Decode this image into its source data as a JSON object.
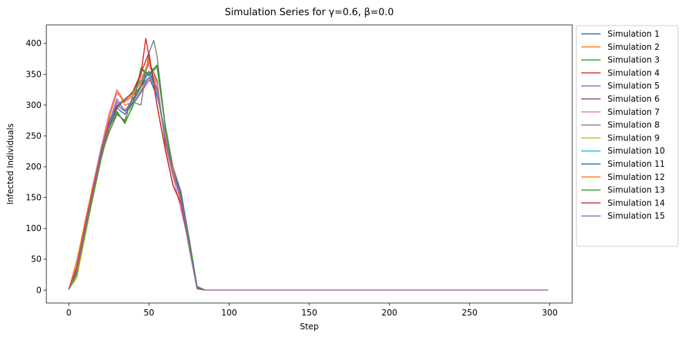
{
  "chart_data": {
    "type": "line",
    "title": "Simulation Series for γ=0.6, β=0.0",
    "xlabel": "Step",
    "ylabel": "Infected Individuals",
    "xlim": [
      -14,
      314
    ],
    "ylim": [
      -21,
      430
    ],
    "xticks": [
      0,
      50,
      100,
      150,
      200,
      250,
      300
    ],
    "yticks": [
      0,
      50,
      100,
      150,
      200,
      250,
      300,
      350,
      400
    ],
    "grid": false,
    "legend_position": "outside-right",
    "series": [
      {
        "name": "Simulation 1",
        "color": "#1f77b4",
        "x": [
          0,
          5,
          10,
          15,
          20,
          25,
          30,
          35,
          40,
          45,
          50,
          55,
          60,
          65,
          70,
          75,
          80,
          85,
          90,
          100,
          150,
          200,
          250,
          299
        ],
        "values": [
          1,
          30,
          95,
          160,
          220,
          275,
          300,
          290,
          310,
          330,
          345,
          315,
          260,
          195,
          150,
          80,
          5,
          0,
          0,
          0,
          0,
          0,
          0,
          0
        ]
      },
      {
        "name": "Simulation 2",
        "color": "#ff7f0e",
        "x": [
          0,
          5,
          10,
          15,
          20,
          25,
          30,
          35,
          40,
          45,
          50,
          55,
          60,
          65,
          70,
          75,
          80,
          85,
          90,
          100,
          150,
          200,
          250,
          299
        ],
        "values": [
          1,
          45,
          105,
          170,
          225,
          280,
          325,
          300,
          305,
          335,
          375,
          320,
          255,
          200,
          140,
          75,
          4,
          0,
          0,
          0,
          0,
          0,
          0,
          0
        ]
      },
      {
        "name": "Simulation 3",
        "color": "#2ca02c",
        "x": [
          0,
          5,
          10,
          15,
          20,
          25,
          30,
          35,
          40,
          45,
          50,
          55,
          60,
          65,
          70,
          75,
          80,
          85,
          90,
          100,
          150,
          200,
          250,
          299
        ],
        "values": [
          1,
          25,
          90,
          150,
          215,
          265,
          290,
          270,
          300,
          360,
          350,
          365,
          270,
          190,
          150,
          85,
          6,
          0,
          0,
          0,
          0,
          0,
          0,
          0
        ]
      },
      {
        "name": "Simulation 4",
        "color": "#d62728",
        "x": [
          0,
          5,
          10,
          15,
          20,
          25,
          30,
          35,
          40,
          45,
          48,
          50,
          55,
          60,
          65,
          70,
          75,
          80,
          85,
          90,
          100,
          150,
          200,
          250,
          299
        ],
        "values": [
          1,
          35,
          100,
          165,
          225,
          270,
          295,
          310,
          320,
          350,
          408,
          380,
          300,
          230,
          170,
          140,
          70,
          3,
          0,
          0,
          0,
          0,
          0,
          0,
          0
        ]
      },
      {
        "name": "Simulation 5",
        "color": "#9467bd",
        "x": [
          0,
          5,
          10,
          15,
          20,
          25,
          30,
          35,
          40,
          45,
          50,
          55,
          60,
          65,
          70,
          75,
          80,
          85,
          90,
          100,
          150,
          200,
          250,
          299
        ],
        "values": [
          1,
          30,
          100,
          160,
          220,
          270,
          310,
          290,
          300,
          320,
          340,
          330,
          250,
          190,
          150,
          70,
          2,
          0,
          0,
          0,
          0,
          0,
          0,
          0
        ]
      },
      {
        "name": "Simulation 6",
        "color": "#8c564b",
        "x": [
          0,
          5,
          10,
          15,
          20,
          25,
          30,
          35,
          40,
          45,
          50,
          55,
          60,
          65,
          70,
          75,
          80,
          85,
          90,
          100,
          150,
          200,
          250,
          299
        ],
        "values": [
          1,
          32,
          95,
          160,
          215,
          255,
          285,
          275,
          315,
          330,
          370,
          340,
          240,
          185,
          155,
          80,
          3,
          0,
          0,
          0,
          0,
          0,
          0,
          0
        ]
      },
      {
        "name": "Simulation 7",
        "color": "#e377c2",
        "x": [
          0,
          5,
          10,
          15,
          20,
          25,
          30,
          35,
          40,
          45,
          50,
          55,
          60,
          65,
          70,
          75,
          80,
          85,
          90,
          100,
          150,
          200,
          250,
          299
        ],
        "values": [
          1,
          38,
          110,
          170,
          230,
          285,
          325,
          305,
          315,
          345,
          365,
          335,
          245,
          185,
          130,
          75,
          3,
          0,
          0,
          0,
          0,
          0,
          0,
          0
        ]
      },
      {
        "name": "Simulation 8",
        "color": "#7f7f7f",
        "x": [
          0,
          5,
          10,
          15,
          20,
          25,
          30,
          35,
          40,
          45,
          50,
          53,
          55,
          60,
          65,
          70,
          75,
          80,
          85,
          90,
          100,
          150,
          200,
          250,
          299
        ],
        "values": [
          1,
          30,
          90,
          150,
          210,
          265,
          300,
          290,
          305,
          300,
          385,
          405,
          380,
          270,
          200,
          160,
          85,
          6,
          0,
          0,
          0,
          0,
          0,
          0,
          0
        ]
      },
      {
        "name": "Simulation 9",
        "color": "#bcbd22",
        "x": [
          0,
          5,
          10,
          15,
          20,
          25,
          30,
          35,
          40,
          45,
          50,
          55,
          60,
          65,
          70,
          75,
          80,
          85,
          90,
          100,
          150,
          200,
          250,
          299
        ],
        "values": [
          1,
          20,
          85,
          150,
          210,
          260,
          295,
          285,
          300,
          325,
          345,
          325,
          255,
          190,
          150,
          75,
          3,
          0,
          0,
          0,
          0,
          0,
          0,
          0
        ]
      },
      {
        "name": "Simulation 10",
        "color": "#17becf",
        "x": [
          0,
          5,
          10,
          15,
          20,
          25,
          30,
          35,
          40,
          45,
          50,
          55,
          60,
          65,
          70,
          75,
          80,
          85,
          90,
          100,
          150,
          200,
          250,
          299
        ],
        "values": [
          1,
          35,
          105,
          165,
          225,
          275,
          300,
          310,
          320,
          340,
          350,
          320,
          250,
          190,
          145,
          80,
          3,
          0,
          0,
          0,
          0,
          0,
          0,
          0
        ]
      },
      {
        "name": "Simulation 11",
        "color": "#1f77b4",
        "x": [
          0,
          5,
          10,
          15,
          20,
          25,
          30,
          35,
          40,
          45,
          50,
          55,
          60,
          65,
          70,
          75,
          80,
          85,
          90,
          100,
          150,
          200,
          250,
          299
        ],
        "values": [
          1,
          33,
          100,
          160,
          215,
          265,
          295,
          285,
          305,
          330,
          355,
          325,
          245,
          195,
          155,
          80,
          4,
          0,
          0,
          0,
          0,
          0,
          0,
          0
        ]
      },
      {
        "name": "Simulation 12",
        "color": "#ff7f0e",
        "x": [
          0,
          5,
          10,
          15,
          20,
          25,
          30,
          35,
          40,
          45,
          50,
          55,
          60,
          65,
          70,
          75,
          80,
          85,
          90,
          100,
          150,
          200,
          250,
          299
        ],
        "values": [
          1,
          48,
          108,
          168,
          222,
          278,
          320,
          305,
          318,
          338,
          372,
          325,
          250,
          195,
          140,
          78,
          4,
          0,
          0,
          0,
          0,
          0,
          0,
          0
        ]
      },
      {
        "name": "Simulation 13",
        "color": "#2ca02c",
        "x": [
          0,
          5,
          10,
          15,
          20,
          25,
          30,
          35,
          40,
          45,
          50,
          55,
          60,
          65,
          70,
          75,
          80,
          85,
          90,
          100,
          150,
          200,
          250,
          299
        ],
        "values": [
          1,
          28,
          92,
          152,
          212,
          262,
          288,
          272,
          298,
          358,
          348,
          362,
          268,
          188,
          148,
          82,
          5,
          0,
          0,
          0,
          0,
          0,
          0,
          0
        ]
      },
      {
        "name": "Simulation 14",
        "color": "#d62728",
        "x": [
          0,
          5,
          10,
          15,
          20,
          25,
          30,
          35,
          40,
          45,
          50,
          55,
          60,
          65,
          70,
          75,
          80,
          85,
          90,
          100,
          150,
          200,
          250,
          299
        ],
        "values": [
          1,
          36,
          102,
          162,
          222,
          272,
          298,
          308,
          322,
          352,
          385,
          300,
          230,
          170,
          140,
          72,
          3,
          0,
          0,
          0,
          0,
          0,
          0,
          0
        ]
      },
      {
        "name": "Simulation 15",
        "color": "#9467bd",
        "x": [
          0,
          5,
          10,
          15,
          20,
          25,
          30,
          35,
          40,
          45,
          50,
          55,
          60,
          65,
          70,
          75,
          80,
          85,
          90,
          100,
          150,
          200,
          250,
          299
        ],
        "values": [
          1,
          31,
          98,
          158,
          218,
          268,
          305,
          292,
          302,
          322,
          345,
          328,
          248,
          188,
          148,
          72,
          2,
          0,
          0,
          0,
          0,
          0,
          0,
          0
        ]
      }
    ]
  }
}
